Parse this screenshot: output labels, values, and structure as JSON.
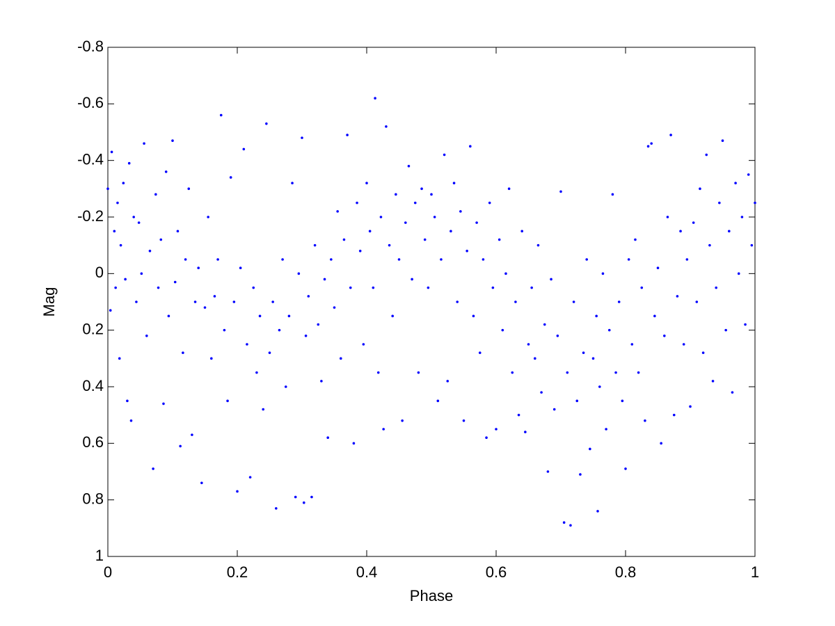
{
  "chart_data": {
    "type": "scatter",
    "x_label": "Phase",
    "y_label": "Mag",
    "color": "#0000ff",
    "xlim": [
      0,
      1
    ],
    "xticks": [
      0,
      0.2,
      0.4,
      0.6,
      0.8,
      1
    ],
    "ylim": [
      -0.8,
      1
    ],
    "yticks": [
      -0.8,
      -0.6,
      -0.4,
      -0.2,
      0,
      0.2,
      0.4,
      0.6,
      0.8,
      1
    ],
    "y_direction": "reverse",
    "grid": false,
    "x": [
      0,
      0.004,
      0.006,
      0.01,
      0.012,
      0.015,
      0.018,
      0.02,
      0.024,
      0.027,
      0.03,
      0.033,
      0.036,
      0.04,
      0.044,
      0.048,
      0.052,
      0.056,
      0.06,
      0.065,
      0.07,
      0.074,
      0.078,
      0.082,
      0.086,
      0.09,
      0.094,
      0.1,
      0.104,
      0.108,
      0.112,
      0.116,
      0.12,
      0.125,
      0.13,
      0.135,
      0.14,
      0.145,
      0.15,
      0.155,
      0.16,
      0.165,
      0.17,
      0.175,
      0.18,
      0.185,
      0.19,
      0.195,
      0.2,
      0.205,
      0.21,
      0.215,
      0.22,
      0.225,
      0.23,
      0.235,
      0.24,
      0.245,
      0.25,
      0.255,
      0.26,
      0.265,
      0.27,
      0.275,
      0.28,
      0.285,
      0.29,
      0.295,
      0.3,
      0.303,
      0.306,
      0.31,
      0.315,
      0.32,
      0.325,
      0.33,
      0.335,
      0.34,
      0.345,
      0.35,
      0.355,
      0.36,
      0.365,
      0.37,
      0.375,
      0.38,
      0.385,
      0.39,
      0.395,
      0.4,
      0.405,
      0.41,
      0.413,
      0.418,
      0.422,
      0.426,
      0.43,
      0.435,
      0.44,
      0.445,
      0.45,
      0.455,
      0.46,
      0.465,
      0.47,
      0.475,
      0.48,
      0.485,
      0.49,
      0.495,
      0.5,
      0.505,
      0.51,
      0.515,
      0.52,
      0.525,
      0.53,
      0.535,
      0.54,
      0.545,
      0.55,
      0.555,
      0.56,
      0.565,
      0.57,
      0.575,
      0.58,
      0.585,
      0.59,
      0.595,
      0.6,
      0.605,
      0.61,
      0.615,
      0.62,
      0.625,
      0.63,
      0.635,
      0.64,
      0.645,
      0.65,
      0.655,
      0.66,
      0.665,
      0.67,
      0.675,
      0.68,
      0.685,
      0.69,
      0.695,
      0.7,
      0.705,
      0.71,
      0.715,
      0.72,
      0.725,
      0.73,
      0.735,
      0.74,
      0.745,
      0.75,
      0.755,
      0.757,
      0.76,
      0.765,
      0.77,
      0.775,
      0.78,
      0.785,
      0.79,
      0.795,
      0.8,
      0.805,
      0.81,
      0.815,
      0.82,
      0.825,
      0.83,
      0.835,
      0.84,
      0.845,
      0.85,
      0.855,
      0.86,
      0.865,
      0.87,
      0.875,
      0.88,
      0.885,
      0.89,
      0.895,
      0.9,
      0.905,
      0.91,
      0.915,
      0.92,
      0.925,
      0.93,
      0.935,
      0.94,
      0.945,
      0.95,
      0.955,
      0.96,
      0.965,
      0.97,
      0.975,
      0.98,
      0.985,
      0.99,
      0.995,
      1
    ],
    "values": [
      -0.3,
      0.13,
      -0.43,
      -0.15,
      0.05,
      -0.25,
      0.3,
      -0.1,
      -0.32,
      0.02,
      0.45,
      -0.39,
      0.52,
      -0.2,
      0.1,
      -0.18,
      0,
      -0.46,
      0.22,
      -0.08,
      0.69,
      -0.28,
      0.05,
      -0.12,
      0.46,
      -0.36,
      0.15,
      -0.47,
      0.03,
      -0.15,
      0.61,
      0.28,
      -0.05,
      -0.3,
      0.57,
      0.1,
      -0.02,
      0.74,
      0.12,
      -0.2,
      0.3,
      0.08,
      -0.05,
      -0.56,
      0.2,
      0.45,
      -0.34,
      0.1,
      0.77,
      -0.02,
      -0.44,
      0.25,
      0.72,
      0.05,
      0.35,
      0.15,
      0.48,
      -0.53,
      0.28,
      0.1,
      0.83,
      0.2,
      -0.05,
      0.4,
      0.15,
      -0.32,
      0.79,
      0,
      -0.48,
      0.81,
      0.22,
      0.08,
      0.79,
      -0.1,
      0.18,
      0.38,
      0.02,
      0.58,
      -0.05,
      0.12,
      -0.22,
      0.3,
      -0.12,
      -0.49,
      0.05,
      0.6,
      -0.25,
      -0.08,
      0.25,
      -0.32,
      -0.15,
      0.05,
      -0.62,
      0.35,
      -0.2,
      0.55,
      -0.52,
      -0.1,
      0.15,
      -0.28,
      -0.05,
      0.52,
      -0.18,
      -0.38,
      0.02,
      -0.25,
      0.35,
      -0.3,
      -0.12,
      0.05,
      -0.28,
      -0.2,
      0.45,
      -0.05,
      -0.42,
      0.38,
      -0.15,
      -0.32,
      0.1,
      -0.22,
      0.52,
      -0.08,
      -0.45,
      0.15,
      -0.18,
      0.28,
      -0.05,
      0.58,
      -0.25,
      0.05,
      0.55,
      -0.12,
      0.2,
      0,
      -0.3,
      0.35,
      0.1,
      0.5,
      -0.15,
      0.56,
      0.25,
      0.05,
      0.3,
      -0.1,
      0.42,
      0.18,
      0.7,
      0.02,
      0.48,
      0.22,
      -0.29,
      0.88,
      0.35,
      0.89,
      0.1,
      0.45,
      0.71,
      0.28,
      -0.05,
      0.62,
      0.3,
      0.15,
      0.84,
      0.4,
      0,
      0.55,
      0.2,
      -0.28,
      0.35,
      0.1,
      0.45,
      0.69,
      -0.05,
      0.25,
      -0.12,
      0.35,
      0.05,
      0.52,
      -0.45,
      -0.46,
      0.15,
      -0.02,
      0.6,
      0.22,
      -0.2,
      -0.49,
      0.5,
      0.08,
      -0.15,
      0.25,
      -0.05,
      0.47,
      -0.18,
      0.1,
      -0.3,
      0.28,
      -0.42,
      -0.1,
      0.38,
      0.05,
      -0.25,
      -0.47,
      0.2,
      -0.15,
      0.42,
      -0.32,
      0,
      -0.2,
      0.18,
      -0.35,
      -0.1,
      -0.25
    ]
  }
}
